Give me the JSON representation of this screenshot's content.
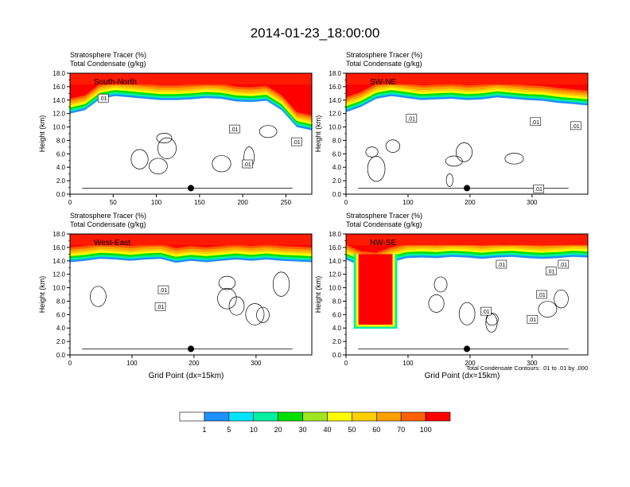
{
  "title": "2014-01-23_18:00:00",
  "y_axis_label": "Height (km)",
  "x_axis_label": "Grid Point (dx=15km)",
  "subtitle_line1": "Stratosphere Tracer   (%)",
  "subtitle_line2": "Total Condensate   (g/kg)",
  "contour_note": "Total Condensate Contours: .01 to .01 by .000",
  "contour_label": ".01",
  "colors": {
    "scale": [
      "#ffffff",
      "#1e90ff",
      "#00e5ff",
      "#00f0a0",
      "#00e000",
      "#a0e620",
      "#ffff00",
      "#ffd000",
      "#ffa000",
      "#ff6000",
      "#ff0000"
    ],
    "tracer_top": "#ff1a00"
  },
  "colorbar": {
    "labels": [
      "1",
      "5",
      "10",
      "20",
      "30",
      "40",
      "50",
      "60",
      "70",
      "100"
    ]
  },
  "chart_data": [
    {
      "type": "heatmap",
      "panel_label": "South-North",
      "ylim": [
        0,
        18
      ],
      "y_ticks": [
        "0.0",
        "2.0",
        "4.0",
        "6.0",
        "8.0",
        "10.0",
        "12.0",
        "14.0",
        "16.0",
        "18.0"
      ],
      "xlim": [
        0,
        280
      ],
      "x_ticks": [
        {
          "v": 0,
          "label": "0"
        },
        {
          "v": 50,
          "label": "50"
        },
        {
          "v": 100,
          "label": "100"
        },
        {
          "v": 150,
          "label": "150"
        },
        {
          "v": 200,
          "label": "200"
        },
        {
          "v": 250,
          "label": "250"
        }
      ],
      "tracer_base_km": [
        13,
        13.5,
        15.2,
        15.6,
        15.4,
        15.2,
        15.0,
        15.0,
        15.1,
        15.3,
        15.2,
        14.8,
        14.7,
        14.9,
        13.5,
        11.0,
        10.5
      ],
      "marker_x": 140,
      "contour_labels": [
        {
          "x": 38,
          "y": 14.3
        },
        {
          "x": 190,
          "y": 9.7
        },
        {
          "x": 205,
          "y": 4.5
        },
        {
          "x": 262,
          "y": 7.8
        }
      ]
    },
    {
      "type": "heatmap",
      "panel_label": "SW-NE",
      "ylim": [
        0,
        18
      ],
      "y_ticks": [
        "0.0",
        "2.0",
        "4.0",
        "6.0",
        "8.0",
        "10.0",
        "12.0",
        "14.0",
        "16.0",
        "18.0"
      ],
      "xlim": [
        0,
        390
      ],
      "x_ticks": [
        {
          "v": 0,
          "label": "0"
        },
        {
          "v": 100,
          "label": "100"
        },
        {
          "v": 200,
          "label": "200"
        },
        {
          "v": 300,
          "label": "300"
        }
      ],
      "tracer_base_km": [
        13.2,
        14.0,
        15.2,
        15.6,
        15.3,
        15.0,
        15.1,
        15.2,
        15.0,
        15.1,
        15.4,
        15.2,
        15.0,
        14.9,
        14.6,
        14.4,
        14.2
      ],
      "marker_x": 195,
      "contour_labels": [
        {
          "x": 105,
          "y": 11.3
        },
        {
          "x": 305,
          "y": 10.8
        },
        {
          "x": 370,
          "y": 10.2
        },
        {
          "x": 310,
          "y": 0.8
        }
      ]
    },
    {
      "type": "heatmap",
      "panel_label": "West-East",
      "ylim": [
        0,
        18
      ],
      "y_ticks": [
        "0.0",
        "2.0",
        "4.0",
        "6.0",
        "8.0",
        "10.0",
        "12.0",
        "14.0",
        "16.0",
        "18.0"
      ],
      "xlim": [
        0,
        390
      ],
      "x_ticks": [
        {
          "v": 0,
          "label": "0"
        },
        {
          "v": 100,
          "label": "100"
        },
        {
          "v": 200,
          "label": "200"
        },
        {
          "v": 300,
          "label": "300"
        }
      ],
      "tracer_base_km": [
        14.8,
        15.0,
        15.3,
        15.2,
        15.0,
        15.2,
        15.3,
        14.7,
        15.0,
        14.8,
        15.0,
        15.2,
        15.0,
        15.2,
        15.0,
        14.9,
        14.8
      ],
      "marker_x": 195,
      "contour_labels": [
        {
          "x": 150,
          "y": 9.7
        },
        {
          "x": 145,
          "y": 7.2
        }
      ]
    },
    {
      "type": "heatmap",
      "panel_label": "NW-SE",
      "ylim": [
        0,
        18
      ],
      "y_ticks": [
        "0.0",
        "2.0",
        "4.0",
        "6.0",
        "8.0",
        "10.0",
        "12.0",
        "14.0",
        "16.0",
        "18.0"
      ],
      "xlim": [
        0,
        390
      ],
      "x_ticks": [
        {
          "v": 0,
          "label": "0"
        },
        {
          "v": 100,
          "label": "100"
        },
        {
          "v": 200,
          "label": "200"
        },
        {
          "v": 300,
          "label": "300"
        }
      ],
      "tracer_base_km": [
        15.2,
        14.2,
        14.0,
        14.8,
        15.4,
        15.5,
        15.4,
        15.6,
        15.5,
        15.3,
        15.5,
        15.6,
        15.4,
        15.3,
        15.4,
        15.6,
        15.5
      ],
      "intrusion": {
        "x0": 20,
        "x1": 75,
        "bottom_km": 4.5
      },
      "marker_x": 195,
      "contour_labels": [
        {
          "x": 250,
          "y": 13.5
        },
        {
          "x": 330,
          "y": 12.5
        },
        {
          "x": 350,
          "y": 13.5
        },
        {
          "x": 315,
          "y": 9.0
        },
        {
          "x": 225,
          "y": 6.5
        },
        {
          "x": 300,
          "y": 5.3
        }
      ]
    }
  ]
}
